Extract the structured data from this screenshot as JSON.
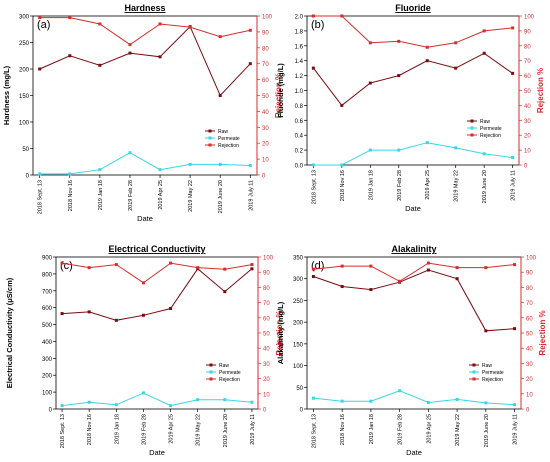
{
  "colors": {
    "raw": "#7a0c10",
    "permeate": "#39d6e3",
    "rejection": "#d62c2c",
    "axis": "#000000"
  },
  "chart_data": [
    {
      "type": "line",
      "panel": "(a)",
      "title": "Hardness",
      "xlabel": "Date",
      "ylabel": "Hardness (mg/L)",
      "y2label": "Rejection %",
      "categories": [
        "2018 Sept. 13",
        "2018 Nov 16",
        "2019 Jan 18",
        "2019 Feb 28",
        "2019 Apr 25",
        "2019 May 22",
        "2019 June 20",
        "2019 July 11"
      ],
      "ylim": [
        0,
        300
      ],
      "yticks": [
        "0",
        "50",
        "100",
        "150",
        "200",
        "250",
        "300"
      ],
      "y2lim": [
        0,
        100
      ],
      "y2ticks": [
        "0",
        "10",
        "20",
        "30",
        "40",
        "50",
        "60",
        "70",
        "80",
        "90",
        "100"
      ],
      "legend": [
        "Raw",
        "Permeate",
        "Rejection"
      ],
      "legend_position": "bottom-right",
      "series": [
        {
          "name": "Raw",
          "axis": "left",
          "values": [
            200,
            225,
            207,
            230,
            223,
            280,
            150,
            210
          ]
        },
        {
          "name": "Permeate",
          "axis": "left",
          "values": [
            2,
            2,
            10,
            42,
            10,
            20,
            20,
            18
          ]
        },
        {
          "name": "Rejection",
          "axis": "right",
          "values": [
            99,
            99,
            95,
            82,
            95,
            93,
            87,
            91
          ]
        }
      ]
    },
    {
      "type": "line",
      "panel": "(b)",
      "title": "Fluoride",
      "xlabel": "Date",
      "ylabel": "Fluoride (mg/L)",
      "y2label": "Rejection %",
      "categories": [
        "2018 Sept. 13",
        "2018 Nov 16",
        "2019 Jan 18",
        "2019 Feb 28",
        "2019 Apr 25",
        "2019 May 22",
        "2019 June 20",
        "2019 July 11"
      ],
      "ylim": [
        0,
        2.0
      ],
      "yticks": [
        "0.0",
        "0.2",
        "0.4",
        "0.6",
        "0.8",
        "1.0",
        "1.2",
        "1.4",
        "1.6",
        "1.8",
        "2.0"
      ],
      "y2lim": [
        0,
        100
      ],
      "y2ticks": [
        "0",
        "10",
        "20",
        "30",
        "40",
        "50",
        "60",
        "70",
        "80",
        "90",
        "100"
      ],
      "legend": [
        "Raw",
        "Permeate",
        "Rejection"
      ],
      "legend_position": "bottom-right",
      "series": [
        {
          "name": "Raw",
          "axis": "left",
          "values": [
            1.3,
            0.8,
            1.1,
            1.2,
            1.4,
            1.3,
            1.5,
            1.23
          ]
        },
        {
          "name": "Permeate",
          "axis": "left",
          "values": [
            0.0,
            0.0,
            0.2,
            0.2,
            0.3,
            0.23,
            0.15,
            0.1
          ]
        },
        {
          "name": "Rejection",
          "axis": "right",
          "values": [
            100,
            100,
            82,
            83,
            79,
            82,
            90,
            92
          ]
        }
      ]
    },
    {
      "type": "line",
      "panel": "(c)",
      "title": "Electrical Conductivity",
      "xlabel": "Date",
      "ylabel": "Electrical Conductivity (μS/cm)",
      "y2label": "Rejection %",
      "categories": [
        "2018 Sept. 13",
        "2018 Nov 16",
        "2019 Jan 18",
        "2019 Feb 28",
        "2019 Apr 25",
        "2019 May 22",
        "2019 June 20",
        "2019 July 11"
      ],
      "ylim": [
        0,
        900
      ],
      "yticks": [
        "0",
        "100",
        "200",
        "300",
        "400",
        "500",
        "600",
        "700",
        "800",
        "900"
      ],
      "y2lim": [
        0,
        100
      ],
      "y2ticks": [
        "0",
        "10",
        "20",
        "30",
        "40",
        "50",
        "60",
        "70",
        "80",
        "90",
        "100"
      ],
      "legend": [
        "Raw",
        "Permeate",
        "Rejection"
      ],
      "legend_position": "bottom-right",
      "series": [
        {
          "name": "Raw",
          "axis": "left",
          "values": [
            565,
            575,
            525,
            555,
            595,
            830,
            695,
            830
          ]
        },
        {
          "name": "Permeate",
          "axis": "left",
          "values": [
            20,
            40,
            25,
            95,
            20,
            55,
            55,
            40
          ]
        },
        {
          "name": "Rejection",
          "axis": "right",
          "values": [
            96,
            93,
            95,
            83,
            96,
            93,
            92,
            95
          ]
        }
      ]
    },
    {
      "type": "line",
      "panel": "(d)",
      "title": "Alakalinity",
      "xlabel": "Date",
      "ylabel": "Alakalinity (mg/L)",
      "y2label": "Rejection %",
      "categories": [
        "2018 Sept. 13",
        "2018 Nov 16",
        "2019 Jan 18",
        "2019 Feb 28",
        "2019 Apr 25",
        "2019 May 22",
        "2019 June 20",
        "2019 July 11"
      ],
      "ylim": [
        0,
        350
      ],
      "yticks": [
        "0",
        "50",
        "100",
        "150",
        "200",
        "250",
        "300",
        "350"
      ],
      "y2lim": [
        0,
        100
      ],
      "y2ticks": [
        "0",
        "10",
        "20",
        "30",
        "40",
        "50",
        "60",
        "70",
        "80",
        "90",
        "100"
      ],
      "legend": [
        "Raw",
        "Permeate",
        "Rejection"
      ],
      "legend_position": "bottom-right",
      "series": [
        {
          "name": "Raw",
          "axis": "left",
          "values": [
            305,
            282,
            275,
            292,
            320,
            300,
            180,
            185
          ]
        },
        {
          "name": "Permeate",
          "axis": "left",
          "values": [
            25,
            18,
            18,
            42,
            15,
            22,
            14,
            10
          ]
        },
        {
          "name": "Rejection",
          "axis": "right",
          "values": [
            92,
            94,
            94,
            84,
            96,
            93,
            93,
            95
          ]
        }
      ]
    }
  ]
}
